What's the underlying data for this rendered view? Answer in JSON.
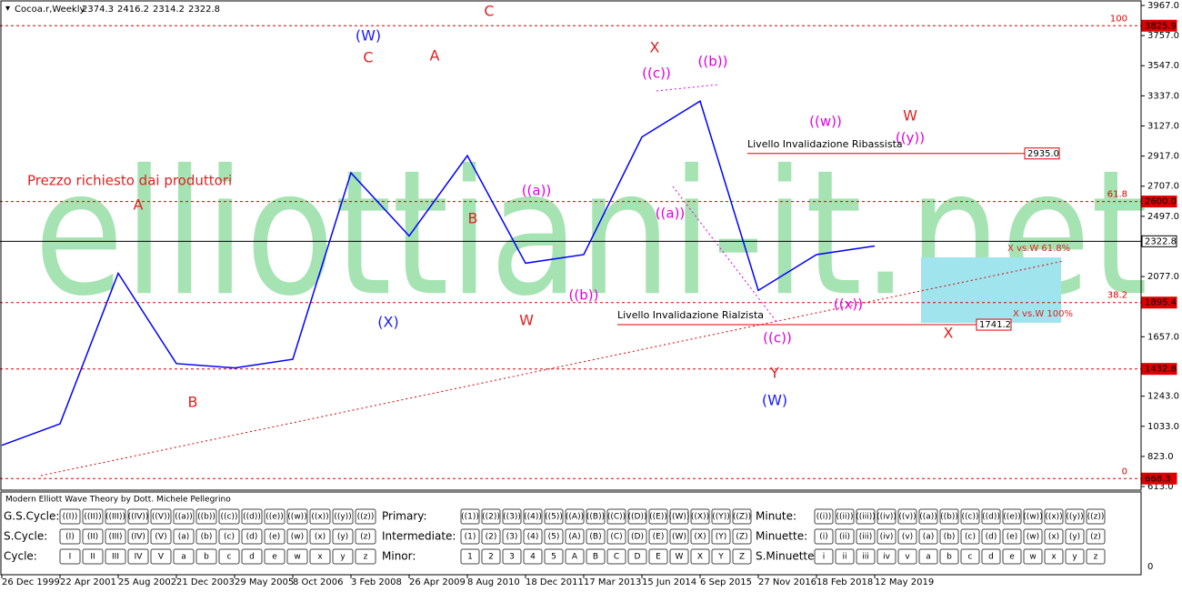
{
  "chart_data": {
    "type": "line",
    "title": "Cocoa.r,Weekly",
    "header_values": [
      2374.3,
      2416.2,
      2314.2,
      2322.8
    ],
    "categories": [
      "26 Dec 1999",
      "22 Apr 2001",
      "25 Aug 2002",
      "21 Dec 2003",
      "29 May 2005",
      "8 Oct 2006",
      "3 Feb 2008",
      "26 Apr 2009",
      "8 Aug 2010",
      "18 Dec 2011",
      "17 Mar 2013",
      "15 Jun 2014",
      "6 Sep 2015",
      "27 Nov 2016",
      "18 Feb 2018",
      "12 May 2019"
    ],
    "values": [
      900,
      1050,
      2100,
      1470,
      1440,
      1500,
      2800,
      2360,
      2920,
      2170,
      2230,
      3050,
      3300,
      1980,
      2230,
      2290
    ],
    "color": "#0000ff",
    "ylim": [
      613,
      3967
    ],
    "yticks": [
      {
        "value": 3967,
        "label": "3967.0"
      },
      {
        "value": 3757,
        "label": "3757.0"
      },
      {
        "value": 3547,
        "label": "3547.0"
      },
      {
        "value": 3337,
        "label": "3337.0"
      },
      {
        "value": 3127,
        "label": "3127.0"
      },
      {
        "value": 2917,
        "label": "2917.0"
      },
      {
        "value": 2707,
        "label": "2707.0"
      },
      {
        "value": 2497,
        "label": "2497.0"
      },
      {
        "value": 2077,
        "label": "2077.0"
      },
      {
        "value": 1657,
        "label": "1657.0"
      },
      {
        "value": 1243,
        "label": "1243.0"
      },
      {
        "value": 1033,
        "label": "1033.0"
      },
      {
        "value": 823,
        "label": "823.0"
      },
      {
        "value": 613,
        "label": "613.0"
      }
    ],
    "levels": [
      {
        "value": 3825.9,
        "label": "3825.9",
        "fib": "100"
      },
      {
        "value": 2935,
        "label": "2935.0"
      },
      {
        "value": 2600,
        "label": "2600.0",
        "fib": "61.8"
      },
      {
        "value": 2322.8,
        "label": "2322.8"
      },
      {
        "value": 1895.4,
        "label": "1895.4",
        "fib": "38.2"
      },
      {
        "value": 1741.2,
        "label": "1741.2"
      },
      {
        "value": 1432.8,
        "label": "1432.8"
      },
      {
        "value": 668.3,
        "label": "668.3",
        "fib": "0"
      }
    ],
    "annotations": [
      "(W)",
      "C",
      "A",
      "C",
      "X",
      "((c))",
      "((b))",
      "Prezzo richiesto dai produttori",
      "A",
      "B",
      "B",
      "((a))",
      "((a))",
      "((b))",
      "(X)",
      "W",
      "((w))",
      "W",
      "((y))",
      "Livello Invalidazione Ribassista",
      "Livello Invalidazione Rialzista",
      "((c))",
      "Y",
      "(W)",
      "((x))",
      "X",
      "X vs.W 61.8%",
      "X vs.W 100%"
    ],
    "watermark": "elliottiani-it.net",
    "panel_axis_label": "0"
  },
  "panel": {
    "title": "Modern Elliott Wave Theory by Dott. Michele Pellegrino",
    "rows": [
      [
        {
          "label": "G.S.Cycle:",
          "buttons": [
            "((I))",
            "((II))",
            "((III))",
            "((IV))",
            "((V))",
            "((a))",
            "((b))",
            "((c))",
            "((d))",
            "((e))",
            "((w))",
            "((x))",
            "((y))",
            "((z))"
          ]
        },
        {
          "label": "Primary:",
          "buttons": [
            "((1))",
            "((2))",
            "((3))",
            "((4))",
            "((5))",
            "((A))",
            "((B))",
            "((C))",
            "((D))",
            "((E))",
            "((W))",
            "((X))",
            "((Y))",
            "((Z))"
          ]
        },
        {
          "label": "Minute:",
          "buttons": [
            "((i))",
            "((ii))",
            "((iii))",
            "((iv))",
            "((v))",
            "((a))",
            "((b))",
            "((c))",
            "((d))",
            "((e))",
            "((w))",
            "((x))",
            "((y))",
            "((z))"
          ]
        }
      ],
      [
        {
          "label": "S.Cycle:",
          "buttons": [
            "(I)",
            "(II)",
            "(III)",
            "(IV)",
            "(V)",
            "(a)",
            "(b)",
            "(c)",
            "(d)",
            "(e)",
            "(w)",
            "(x)",
            "(y)",
            "(z)"
          ]
        },
        {
          "label": "Intermediate:",
          "buttons": [
            "(1)",
            "(2)",
            "(3)",
            "(4)",
            "(5)",
            "(A)",
            "(B)",
            "(C)",
            "(D)",
            "(E)",
            "(W)",
            "(X)",
            "(Y)",
            "(Z)"
          ]
        },
        {
          "label": "Minuette:",
          "buttons": [
            "(i)",
            "(ii)",
            "(iii)",
            "(iv)",
            "(v)",
            "(a)",
            "(b)",
            "(c)",
            "(d)",
            "(e)",
            "(w)",
            "(x)",
            "(y)",
            "(z)"
          ]
        }
      ],
      [
        {
          "label": "Cycle:",
          "buttons": [
            "I",
            "II",
            "III",
            "IV",
            "V",
            "a",
            "b",
            "c",
            "d",
            "e",
            "w",
            "x",
            "y",
            "z"
          ]
        },
        {
          "label": "Minor:",
          "buttons": [
            "1",
            "2",
            "3",
            "4",
            "5",
            "A",
            "B",
            "C",
            "D",
            "E",
            "W",
            "X",
            "Y",
            "Z"
          ]
        },
        {
          "label": "S.Minuette:",
          "buttons": [
            "i",
            "ii",
            "iii",
            "iv",
            "v",
            "a",
            "b",
            "c",
            "d",
            "e",
            "w",
            "x",
            "y",
            "z"
          ]
        }
      ]
    ]
  }
}
